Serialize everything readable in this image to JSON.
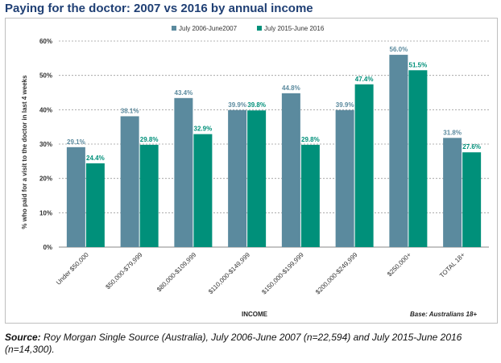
{
  "title": "Paying for the doctor: 2007 vs 2016 by annual income",
  "source_label": "Source:",
  "source_text": " Roy Morgan Single Source (Australia), July 2006-June 2007 (n=22,594) and July 2015-June 2016 (n=14,300).",
  "chart_data": {
    "type": "bar",
    "categories": [
      "Under $50,000",
      "$50,000-$79,999",
      "$80,000-$109,999",
      "$110,000-$149,999",
      "$150,000-$199,999",
      "$200,000-$249,999",
      "$250,000+",
      "TOTAL 18+"
    ],
    "series": [
      {
        "name": "July 2006-June2007",
        "color": "#5b8a9e",
        "values": [
          29.1,
          38.1,
          43.4,
          39.9,
          44.8,
          39.9,
          56.0,
          31.8
        ],
        "labels": [
          "29.1%",
          "38.1%",
          "43.4%",
          "39.9%",
          "44.8%",
          "39.9%",
          "56.0%",
          "31.8%"
        ]
      },
      {
        "name": "July 2015-June 2016",
        "color": "#00907a",
        "values": [
          24.4,
          29.8,
          32.9,
          39.8,
          29.8,
          47.4,
          51.5,
          27.6
        ],
        "labels": [
          "24.4%",
          "29.8%",
          "32.9%",
          "39.8%",
          "29.8%",
          "47.4%",
          "51.5%",
          "27.6%"
        ]
      }
    ],
    "series1_label_color": "#5b8a9e",
    "series2_label_color": "#00907a",
    "ylim": [
      0,
      60
    ],
    "yticks": [
      "0%",
      "10%",
      "20%",
      "30%",
      "40%",
      "50%",
      "60%"
    ],
    "ylabel": "% who paid for a visit to the doctor in last 4 weeks",
    "xlabel": "INCOME",
    "note": "Base: Australians 18+",
    "legend_position": "top",
    "grid": true
  }
}
